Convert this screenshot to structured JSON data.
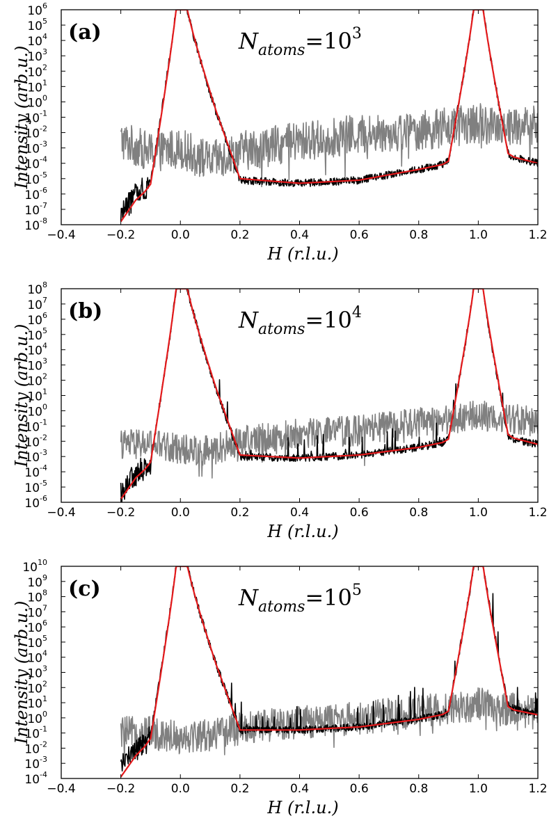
{
  "colors": {
    "gray": "#808080",
    "black": "#000000",
    "red": "#e41a1c"
  },
  "chart_data": [
    {
      "type": "line",
      "panel_label": "(a)",
      "annotation_base": "N",
      "annotation_sub": "atoms",
      "annotation_eq": "=10",
      "annotation_exp": "3",
      "xlabel": "H (r.l.u.)",
      "ylabel": "Intensity (arb.u.)",
      "xlim": [
        -0.4,
        1.2
      ],
      "ylim_log10": [
        -8,
        6
      ],
      "yscale": "log",
      "x_ticks": [
        -0.4,
        -0.2,
        0.0,
        0.2,
        0.4,
        0.6,
        0.8,
        1.0,
        1.2
      ],
      "x_tick_labels": [
        "−0.4",
        "−0.2",
        "0.0",
        "0.2",
        "0.4",
        "0.6",
        "0.8",
        "1.0",
        "1.2"
      ],
      "y_tick_exponents": [
        -8,
        -7,
        -6,
        -5,
        -4,
        -3,
        -2,
        -1,
        0,
        1,
        2,
        3,
        4,
        5,
        6
      ],
      "y_tick_base": "10",
      "series": [
        {
          "color": "gray",
          "x": [
            -0.2,
            -0.1,
            0.0,
            0.1,
            0.2,
            0.4,
            0.6,
            0.8,
            1.0,
            1.1,
            1.2
          ],
          "y_log10": [
            -2.5,
            -3.3,
            -3.0,
            -3.9,
            -3.2,
            -2.6,
            -2.1,
            -1.9,
            -1.4,
            -1.6,
            -1.5
          ]
        },
        {
          "color": "black",
          "x": [
            -0.2,
            -0.15,
            -0.1,
            0.0,
            0.2,
            0.4,
            0.6,
            0.8,
            0.9,
            1.0,
            1.1,
            1.2
          ],
          "y_log10": [
            -7.2,
            -6.0,
            -5.3,
            6.0,
            -5.1,
            -5.3,
            -5.1,
            -4.4,
            -4.0,
            6.0,
            -3.5,
            -4.0
          ]
        },
        {
          "color": "red",
          "x": [
            -0.2,
            -0.15,
            -0.1,
            0.0,
            0.2,
            0.4,
            0.6,
            0.8,
            0.9,
            1.0,
            1.1,
            1.2
          ],
          "y_log10": [
            -7.8,
            -6.4,
            -5.5,
            6.0,
            -5.0,
            -5.3,
            -5.1,
            -4.4,
            -4.0,
            6.0,
            -3.5,
            -4.0
          ]
        }
      ]
    },
    {
      "type": "line",
      "panel_label": "(b)",
      "annotation_base": "N",
      "annotation_sub": "atoms",
      "annotation_eq": "=10",
      "annotation_exp": "4",
      "xlabel": "H (r.l.u.)",
      "ylabel": "Intensity (arb.u.)",
      "xlim": [
        -0.4,
        1.2
      ],
      "ylim_log10": [
        -6,
        8
      ],
      "yscale": "log",
      "x_ticks": [
        -0.4,
        -0.2,
        0.0,
        0.2,
        0.4,
        0.6,
        0.8,
        1.0,
        1.2
      ],
      "x_tick_labels": [
        "−0.4",
        "−0.2",
        "0.0",
        "0.2",
        "0.4",
        "0.6",
        "0.8",
        "1.0",
        "1.2"
      ],
      "y_tick_exponents": [
        -6,
        -5,
        -4,
        -3,
        -2,
        -1,
        0,
        1,
        2,
        3,
        4,
        5,
        6,
        7,
        8
      ],
      "y_tick_base": "10",
      "series": [
        {
          "color": "gray",
          "x": [
            -0.2,
            -0.1,
            0.0,
            0.1,
            0.2,
            0.4,
            0.6,
            0.8,
            1.0,
            1.1,
            1.2
          ],
          "y_log10": [
            -2.2,
            -2.2,
            -2.5,
            -2.6,
            -2.0,
            -1.5,
            -1.3,
            -0.8,
            -0.3,
            -0.5,
            -0.7
          ]
        },
        {
          "color": "black",
          "x": [
            -0.2,
            -0.15,
            -0.1,
            0.0,
            0.2,
            0.4,
            0.6,
            0.8,
            0.9,
            1.0,
            1.1,
            1.2
          ],
          "y_log10": [
            -5.3,
            -4.2,
            -3.5,
            8.0,
            -3.0,
            -3.1,
            -2.9,
            -2.4,
            -2.0,
            8.0,
            -1.8,
            -2.2
          ]
        },
        {
          "color": "red",
          "x": [
            -0.2,
            -0.15,
            -0.1,
            0.0,
            0.2,
            0.4,
            0.6,
            0.8,
            0.9,
            1.0,
            1.1,
            1.2
          ],
          "y_log10": [
            -5.8,
            -4.4,
            -3.5,
            8.0,
            -2.9,
            -3.1,
            -2.9,
            -2.4,
            -2.0,
            8.0,
            -1.7,
            -2.2
          ]
        }
      ]
    },
    {
      "type": "line",
      "panel_label": "(c)",
      "annotation_base": "N",
      "annotation_sub": "atoms",
      "annotation_eq": "=10",
      "annotation_exp": "5",
      "xlabel": "H (r.l.u.)",
      "ylabel": "Intensity (arb.u.)",
      "xlim": [
        -0.4,
        1.2
      ],
      "ylim_log10": [
        -4,
        10
      ],
      "yscale": "log",
      "x_ticks": [
        -0.4,
        -0.2,
        0.0,
        0.2,
        0.4,
        0.6,
        0.8,
        1.0,
        1.2
      ],
      "x_tick_labels": [
        "−0.4",
        "−0.2",
        "0.0",
        "0.2",
        "0.4",
        "0.6",
        "0.8",
        "1.0",
        "1.2"
      ],
      "y_tick_exponents": [
        -4,
        -3,
        -2,
        -1,
        0,
        1,
        2,
        3,
        4,
        5,
        6,
        7,
        8,
        9,
        10
      ],
      "y_tick_base": "10",
      "series": [
        {
          "color": "gray",
          "x": [
            -0.2,
            -0.1,
            0.0,
            0.1,
            0.2,
            0.4,
            0.6,
            0.8,
            1.0,
            1.1,
            1.2
          ],
          "y_log10": [
            -1.0,
            -1.0,
            -1.2,
            -1.1,
            -0.7,
            -0.3,
            0.0,
            0.4,
            0.9,
            0.6,
            0.3
          ]
        },
        {
          "color": "black",
          "x": [
            -0.2,
            -0.15,
            -0.1,
            0.0,
            0.2,
            0.4,
            0.6,
            0.8,
            0.9,
            1.0,
            1.1,
            1.2
          ],
          "y_log10": [
            -3.2,
            -2.1,
            -1.3,
            10.0,
            -0.8,
            -0.8,
            -0.6,
            -0.1,
            0.3,
            10.0,
            0.7,
            0.2
          ]
        },
        {
          "color": "red",
          "x": [
            -0.2,
            -0.15,
            -0.1,
            0.0,
            0.2,
            0.4,
            0.6,
            0.8,
            0.9,
            1.0,
            1.1,
            1.2
          ],
          "y_log10": [
            -3.9,
            -2.5,
            -1.5,
            10.0,
            -0.8,
            -0.8,
            -0.6,
            -0.1,
            0.3,
            10.0,
            0.6,
            0.2
          ]
        }
      ]
    }
  ]
}
